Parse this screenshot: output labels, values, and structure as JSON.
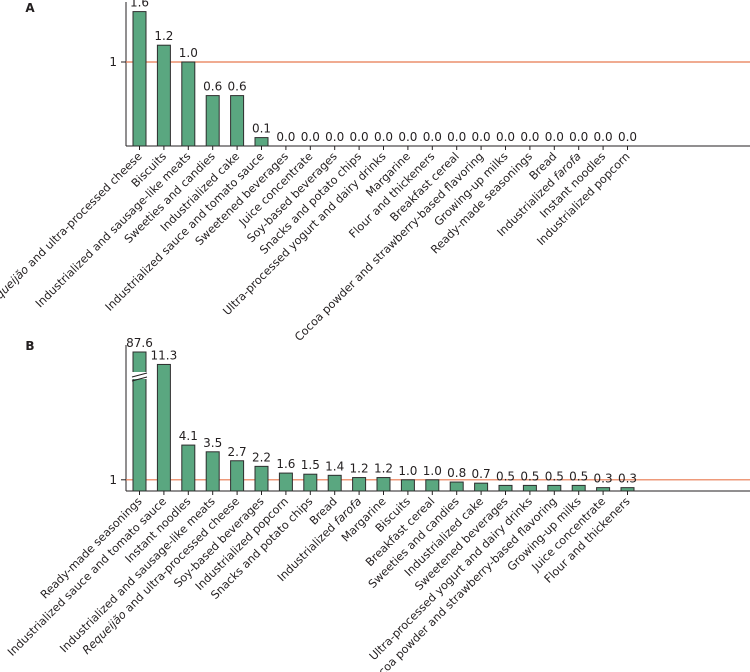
{
  "colors": {
    "bar": "#5aa780",
    "bar_outline": "#2d2d2d",
    "reference_line": "#e8794f",
    "axis": "#231f20"
  },
  "chart_data": [
    {
      "type": "bar",
      "panel": "A",
      "ytick": "1",
      "reference_value": 1,
      "categories": [
        "Requeijão and ultra-processed cheese",
        "Biscuits",
        "Industrialized and sausage-like meats",
        "Sweeties and candies",
        "Industrialized cake",
        "Industrialized sauce and tomato sauce",
        "Sweetened beverages",
        "Juice concentrate",
        "Soy-based beverages",
        "Snacks and potato chips",
        "Ultra-processed yogurt and dairy drinks",
        "Margarine",
        "Flour and thickeners",
        "Breakfast cereal",
        "Cocoa powder and strawberry-based flavoring",
        "Growing-up milks",
        "Ready-made seasonings",
        "Bread",
        "Industrialized farofa",
        "Instant noodles",
        "Industrialized popcorn"
      ],
      "values": [
        1.6,
        1.2,
        1.0,
        0.6,
        0.6,
        0.1,
        0,
        0,
        0,
        0,
        0,
        0,
        0,
        0,
        0,
        0,
        0,
        0,
        0,
        0,
        0
      ],
      "value_labels": [
        "1.6",
        "1.2",
        "1.0",
        "0.6",
        "0.6",
        "0.1",
        "0.0",
        "0.0",
        "0.0",
        "0.0",
        "0.0",
        "0.0",
        "0.0",
        "0.0",
        "0.0",
        "0.0",
        "0.0",
        "0.0",
        "0.0",
        "0.0",
        "0.0"
      ],
      "ylim": [
        0,
        1.6
      ],
      "broken_axis": false
    },
    {
      "type": "bar",
      "panel": "B",
      "ytick": "1",
      "reference_value": 1,
      "categories": [
        "Ready-made seasonings",
        "Industrialized sauce and tomato sauce",
        "Instant noodles",
        "Industrialized and sausage-like meats",
        "Requeijão and ultra-processed cheese",
        "Soy-based beverages",
        "Industrialized popcorn",
        "Snacks and potato chips",
        "Bread",
        "Industrialized farofa",
        "Margarine",
        "Biscuits",
        "Breakfast cereal",
        "Sweeties and candies",
        "Industrialized cake",
        "Sweetened beverages",
        "Ultra-processed yogurt and dairy drinks",
        "Cocoa powder and strawberry-based flavoring",
        "Growing-up milks",
        "Juice concentrate",
        "Flour and thickeners"
      ],
      "values": [
        87.6,
        11.3,
        4.1,
        3.5,
        2.7,
        2.2,
        1.6,
        1.5,
        1.4,
        1.2,
        1.2,
        1.0,
        1.0,
        0.8,
        0.7,
        0.5,
        0.5,
        0.5,
        0.5,
        0.3,
        0.3
      ],
      "value_labels": [
        "87.6",
        "11.3",
        "4.1",
        "3.5",
        "2.7",
        "2.2",
        "1.6",
        "1.5",
        "1.4",
        "1.2",
        "1.2",
        "1.0",
        "1.0",
        "0.8",
        "0.7",
        "0.5",
        "0.5",
        "0.5",
        "0.5",
        "0.3",
        "0.3"
      ],
      "ylim": [
        0,
        11.3
      ],
      "broken_axis": true,
      "broken_bar": "Ready-made seasonings"
    }
  ]
}
